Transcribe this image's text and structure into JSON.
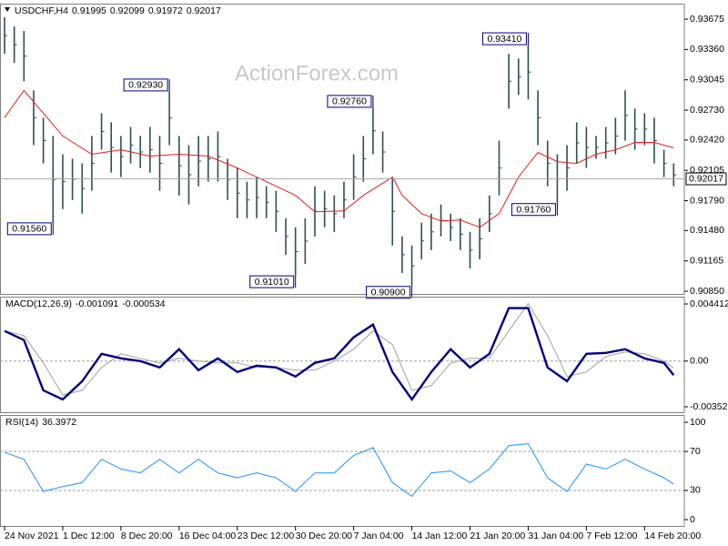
{
  "chart_data": [
    {
      "type": "ohlc",
      "symbol": "USDCHF,H4",
      "header_values": [
        0.91995,
        0.92099,
        0.91972,
        0.92017
      ],
      "watermark": "ActionForex.com",
      "color": "#2f4f4f",
      "xlim": [
        -0.47,
        70.1
      ],
      "ylim": [
        0.90822,
        0.93836
      ],
      "yticks": [
        0.93675,
        {
          "value": 0.9336,
          "label": "0.93360"
        },
        0.93045,
        {
          "value": 0.9273,
          "label": "0.92730"
        },
        {
          "value": 0.9242,
          "label": "0.92420"
        },
        0.92105,
        {
          "value": 0.9179,
          "label": "0.91790"
        },
        {
          "value": 0.9148,
          "label": "0.91480"
        },
        0.91165,
        {
          "value": 0.9085,
          "label": "0.90850"
        }
      ],
      "high": [
        0.93694,
        0.93599,
        0.93552,
        0.92936,
        0.92651,
        0.92462,
        0.92272,
        0.92225,
        0.92177,
        0.92462,
        0.92699,
        0.92604,
        0.92462,
        0.92556,
        0.92462,
        0.92556,
        0.92462,
        0.9293,
        0.92462,
        0.92367,
        0.92462,
        0.92462,
        0.92509,
        0.92225,
        0.9213,
        0.91988,
        0.92035,
        0.9194,
        0.91893,
        0.91608,
        0.91514,
        0.91608,
        0.9194,
        0.91893,
        0.91845,
        0.91988,
        0.92272,
        0.92462,
        0.9276,
        0.92509,
        0.92035,
        0.91419,
        0.91324,
        0.91561,
        0.91656,
        0.91751,
        0.91656,
        0.91608,
        0.91466,
        0.91608,
        0.91845,
        0.92414,
        0.93315,
        0.93267,
        0.9341,
        0.92936,
        0.92414,
        0.92272,
        0.92367,
        0.92604,
        0.92556,
        0.92462,
        0.92556,
        0.92651,
        0.92936,
        0.92746,
        0.92699,
        0.92651,
        0.92319,
        0.92177
      ],
      "low": [
        0.93315,
        0.9322,
        0.9303,
        0.92367,
        0.92177,
        0.9156,
        0.91703,
        0.91798,
        0.91656,
        0.91893,
        0.92319,
        0.92082,
        0.92035,
        0.92177,
        0.9213,
        0.92082,
        0.91893,
        0.92367,
        0.91845,
        0.91751,
        0.9194,
        0.91988,
        0.91988,
        0.91798,
        0.91608,
        0.91608,
        0.91608,
        0.91608,
        0.91466,
        0.91229,
        0.9101,
        0.91134,
        0.91419,
        0.91514,
        0.91466,
        0.91608,
        0.91798,
        0.91988,
        0.92272,
        0.92082,
        0.91324,
        0.9104,
        0.909,
        0.91182,
        0.91277,
        0.91419,
        0.91371,
        0.91277,
        0.91087,
        0.91182,
        0.91466,
        0.91845,
        0.92746,
        0.92888,
        0.92841,
        0.92367,
        0.9194,
        0.9176,
        0.91893,
        0.92177,
        0.9213,
        0.92225,
        0.92225,
        0.92272,
        0.92414,
        0.92319,
        0.92367,
        0.92177,
        0.92035,
        0.9194
      ],
      "ma": {
        "color": "#e41a1c",
        "x": [
          0,
          2,
          4,
          6,
          9,
          12,
          15,
          18,
          21,
          24,
          27,
          30,
          32,
          35,
          37,
          40,
          41,
          43,
          45,
          47,
          49,
          51,
          53,
          55,
          57,
          59,
          61,
          63,
          65,
          67,
          69
        ],
        "values": [
          0.92651,
          0.92936,
          0.92699,
          0.92462,
          0.92272,
          0.92319,
          0.92253,
          0.92272,
          0.92253,
          0.9213,
          0.91988,
          0.91845,
          0.91675,
          0.91684,
          0.91845,
          0.92035,
          0.91845,
          0.91656,
          0.9158,
          0.9159,
          0.91514,
          0.91656,
          0.92035,
          0.92291,
          0.92196,
          0.92177,
          0.92272,
          0.92319,
          0.92395,
          0.92395,
          0.92338
        ]
      },
      "annotations": [
        {
          "x": 54,
          "value": 0.9341,
          "label": "0.93410"
        },
        {
          "x": 17,
          "value": 0.9293,
          "label": "0.92930"
        },
        {
          "x": 38,
          "value": 0.9276,
          "label": "0.92760"
        },
        {
          "x": 5,
          "value": 0.9156,
          "label": "0.91560"
        },
        {
          "x": 57,
          "value": 0.9176,
          "label": "0.91760"
        },
        {
          "x": 30,
          "value": 0.9101,
          "label": "0.91010"
        },
        {
          "x": 42,
          "value": 0.909,
          "label": "0.90900"
        }
      ]
    },
    {
      "type": "line",
      "indicator": "MACD(12,26,9)",
      "current": [
        -0.001091,
        -0.000534
      ],
      "xlim": [
        -0.47,
        70.1
      ],
      "ylim": [
        -0.003951,
        0.004976
      ],
      "yticks": [
        0.004412,
        {
          "value": 0,
          "label": "0.00"
        },
        -0.003528
      ],
      "levels": [
        0
      ],
      "x": [
        0,
        2,
        4,
        6,
        8,
        10,
        12,
        14,
        16,
        18,
        20,
        22,
        24,
        26,
        28,
        30,
        32,
        34,
        36,
        38,
        40,
        42,
        44,
        46,
        48,
        50,
        52,
        54,
        56,
        58,
        60,
        62,
        64,
        66,
        68,
        69
      ],
      "series": [
        {
          "color": "#000080",
          "values": [
            0.002327,
            0.001622,
            -0.002256,
            -0.002961,
            -0.001551,
            0.000564,
            0.000212,
            0,
            -0.000494,
            0.000917,
            -0.000705,
            0.000212,
            -0.000846,
            -0.000353,
            -0.000494,
            -0.001199,
            -0.000141,
            0.000212,
            0.001833,
            0.00282,
            -0.000846,
            -0.002961,
            -0.000846,
            0.000917,
            -0.000494,
            0.000564,
            0.004089,
            0.004089,
            -0.000494,
            -0.001551,
            0.000564,
            0.000635,
            0.000917,
            0.000212,
            -0.000141,
            -0.001091
          ]
        },
        {
          "color": "#a0a0a0",
          "values": [
            0.002327,
            0.001974,
            -0.000141,
            -0.002609,
            -0.002256,
            -0.000494,
            0.000564,
            0.000212,
            -0.000141,
            0.000212,
            0,
            -0.000141,
            -0.000141,
            -0.000494,
            -0.000494,
            -0.000705,
            -0.000705,
            0,
            0.000917,
            0.002327,
            0.001269,
            -0.002256,
            -0.001904,
            -0.000141,
            0.000212,
            0.000212,
            0.002327,
            0.004442,
            0.001974,
            -0.001199,
            -0.000846,
            0.000353,
            0.000705,
            0.000564,
            0,
            -0.000534
          ]
        }
      ]
    },
    {
      "type": "line",
      "indicator": "RSI(14)",
      "current": 36.3972,
      "xlim": [
        -0.47,
        70.1
      ],
      "ylim": [
        -6.5,
        107.5
      ],
      "yticks": [
        100,
        70,
        30,
        0
      ],
      "levels": [
        70,
        30
      ],
      "xticks": [
        {
          "value": 0,
          "label": "24 Nov 2021"
        },
        {
          "value": 6,
          "label": "1 Dec 12:00"
        },
        {
          "value": 12,
          "label": "8 Dec 20:00"
        },
        {
          "value": 18,
          "label": "16 Dec 04:00"
        },
        {
          "value": 24,
          "label": "23 Dec 12:00"
        },
        {
          "value": 30,
          "label": "30 Dec 20:00"
        },
        {
          "value": 36,
          "label": "7 Jan 04:00"
        },
        {
          "value": 42,
          "label": "14 Jan 12:00"
        },
        {
          "value": 48,
          "label": "21 Jan 20:00"
        },
        {
          "value": 54,
          "label": "31 Jan 04:00"
        },
        {
          "value": 60,
          "label": "7 Feb 12:00"
        },
        {
          "value": 66,
          "label": "14 Feb 20:00"
        }
      ],
      "x": [
        0,
        2,
        4,
        6,
        8,
        10,
        12,
        14,
        16,
        18,
        20,
        22,
        24,
        26,
        28,
        30,
        32,
        34,
        36,
        38,
        40,
        42,
        44,
        46,
        48,
        50,
        52,
        54,
        56,
        58,
        60,
        62,
        64,
        66,
        68,
        69
      ],
      "series": [
        {
          "color": "#1e90ff",
          "values": [
            69,
            62,
            29,
            34,
            38,
            62,
            52,
            48,
            62,
            48,
            62,
            48,
            43,
            48,
            43,
            29,
            48,
            48,
            66,
            74,
            38,
            24,
            48,
            50,
            38,
            52,
            76,
            78,
            43,
            29,
            57,
            52,
            62,
            52,
            43,
            36.3972
          ]
        }
      ]
    }
  ]
}
